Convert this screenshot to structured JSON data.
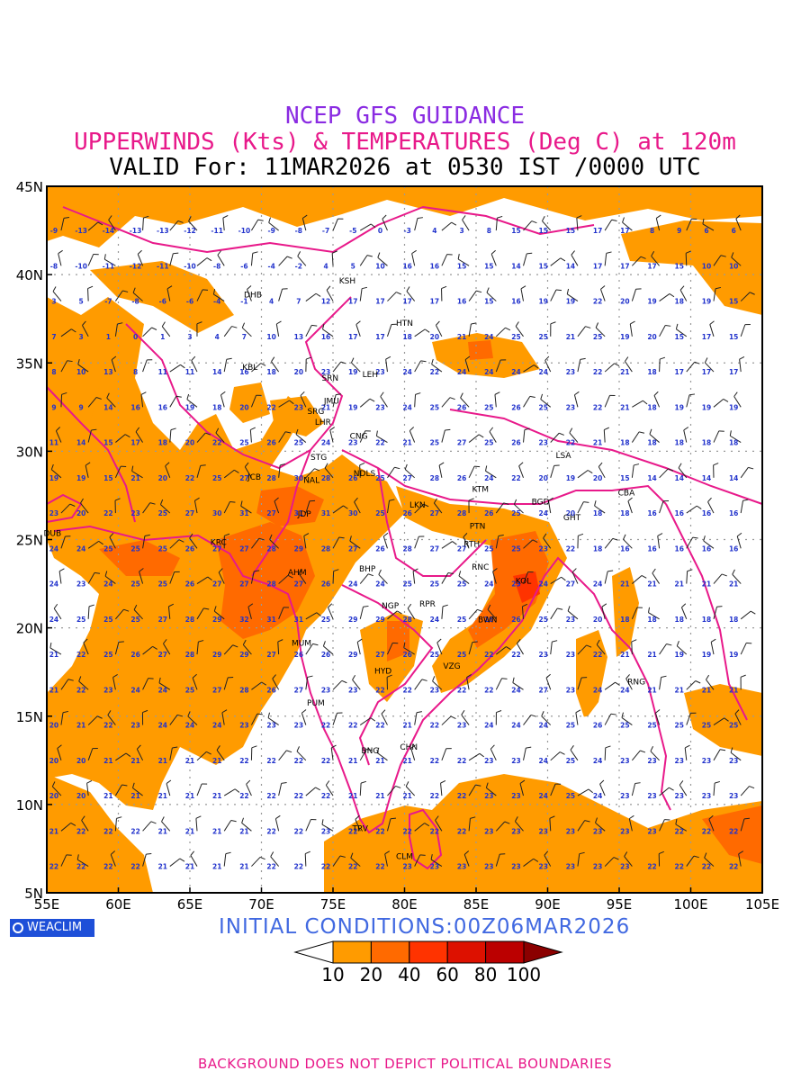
{
  "header": {
    "line1": "NCEP GFS GUIDANCE",
    "line2": "UPPERWINDS (Kts) & TEMPERATURES (Deg C) at 120m",
    "line3": "VALID For: 11MAR2026 at 0530 IST /0000 UTC"
  },
  "map": {
    "lat_labels": [
      "45N",
      "40N",
      "35N",
      "30N",
      "25N",
      "20N",
      "15N",
      "10N",
      "5N"
    ],
    "lon_labels": [
      "55E",
      "60E",
      "65E",
      "70E",
      "75E",
      "80E",
      "85E",
      "90E",
      "95E",
      "100E",
      "105E"
    ],
    "lat_range": [
      5,
      45
    ],
    "lon_range": [
      55,
      105
    ],
    "grid": "dotted every 5 degrees",
    "stations": [
      {
        "code": "KSH",
        "lon": 76.0,
        "lat": 39.5
      },
      {
        "code": "DHB",
        "lon": 69.4,
        "lat": 38.7
      },
      {
        "code": "HTN",
        "lon": 80.0,
        "lat": 37.1
      },
      {
        "code": "KBL",
        "lon": 69.2,
        "lat": 34.6
      },
      {
        "code": "SRN",
        "lon": 74.8,
        "lat": 34.0
      },
      {
        "code": "LEH",
        "lon": 77.6,
        "lat": 34.2
      },
      {
        "code": "JMU",
        "lon": 74.9,
        "lat": 32.7
      },
      {
        "code": "SRG",
        "lon": 73.8,
        "lat": 32.1
      },
      {
        "code": "LHR",
        "lon": 74.3,
        "lat": 31.5
      },
      {
        "code": "CNG",
        "lon": 76.8,
        "lat": 30.7
      },
      {
        "code": "STG",
        "lon": 74.0,
        "lat": 29.5
      },
      {
        "code": "JCB",
        "lon": 69.5,
        "lat": 28.4
      },
      {
        "code": "NAL",
        "lon": 73.5,
        "lat": 28.2
      },
      {
        "code": "NDLS",
        "lon": 77.2,
        "lat": 28.6
      },
      {
        "code": "JDP",
        "lon": 73.0,
        "lat": 26.3
      },
      {
        "code": "LKN",
        "lon": 80.9,
        "lat": 26.8
      },
      {
        "code": "KTM",
        "lon": 85.3,
        "lat": 27.7
      },
      {
        "code": "BGD",
        "lon": 89.5,
        "lat": 27.0
      },
      {
        "code": "LSA",
        "lon": 91.1,
        "lat": 29.6
      },
      {
        "code": "CBA",
        "lon": 95.5,
        "lat": 27.5
      },
      {
        "code": "GHT",
        "lon": 91.7,
        "lat": 26.1
      },
      {
        "code": "DUB",
        "lon": 55.4,
        "lat": 25.2
      },
      {
        "code": "KRC",
        "lon": 67.0,
        "lat": 24.7
      },
      {
        "code": "PTN",
        "lon": 85.1,
        "lat": 25.6
      },
      {
        "code": "RTH",
        "lon": 84.7,
        "lat": 24.6
      },
      {
        "code": "AHM",
        "lon": 72.5,
        "lat": 23.0
      },
      {
        "code": "BHP",
        "lon": 77.4,
        "lat": 23.2
      },
      {
        "code": "RNC",
        "lon": 85.3,
        "lat": 23.3
      },
      {
        "code": "KOL",
        "lon": 88.3,
        "lat": 22.5
      },
      {
        "code": "NGP",
        "lon": 79.0,
        "lat": 21.1
      },
      {
        "code": "RPR",
        "lon": 81.6,
        "lat": 21.2
      },
      {
        "code": "BWN",
        "lon": 85.8,
        "lat": 20.3
      },
      {
        "code": "MUM",
        "lon": 72.8,
        "lat": 19.0
      },
      {
        "code": "HYD",
        "lon": 78.5,
        "lat": 17.4
      },
      {
        "code": "VZG",
        "lon": 83.3,
        "lat": 17.7
      },
      {
        "code": "RNG",
        "lon": 96.2,
        "lat": 16.8
      },
      {
        "code": "PUM",
        "lon": 73.8,
        "lat": 15.6
      },
      {
        "code": "CHN",
        "lon": 80.3,
        "lat": 13.1
      },
      {
        "code": "BNG",
        "lon": 77.6,
        "lat": 12.9
      },
      {
        "code": "TRV",
        "lon": 76.9,
        "lat": 8.5
      },
      {
        "code": "CLM",
        "lon": 80.0,
        "lat": 6.9
      }
    ],
    "temperature_rows": [
      {
        "lat": 42.5,
        "values": [
          "-9",
          "-13",
          "-14",
          "-13",
          "-13",
          "-12",
          "-11",
          "-10",
          "-9",
          "-8",
          "-7",
          "-5",
          "0",
          "-3",
          "4",
          "3",
          "8",
          "15",
          "15",
          "15",
          "17",
          "17",
          "8",
          "9",
          "6",
          "6"
        ]
      },
      {
        "lat": 40.5,
        "values": [
          "-8",
          "-10",
          "-11",
          "-12",
          "-11",
          "-10",
          "-8",
          "-6",
          "-4",
          "-2",
          "4",
          "5",
          "10",
          "16",
          "16",
          "15",
          "15",
          "14",
          "15",
          "14",
          "17",
          "17",
          "17",
          "15",
          "10",
          "10"
        ]
      },
      {
        "lat": 38.5,
        "values": [
          "3",
          "5",
          "-7",
          "-8",
          "-6",
          "-6",
          "-4",
          "-1",
          "4",
          "7",
          "12",
          "17",
          "17",
          "17",
          "17",
          "16",
          "15",
          "16",
          "19",
          "19",
          "22",
          "20",
          "19",
          "18",
          "19",
          "15"
        ]
      },
      {
        "lat": 36.5,
        "values": [
          "7",
          "3",
          "1",
          "0",
          "1",
          "3",
          "4",
          "7",
          "10",
          "13",
          "16",
          "17",
          "17",
          "18",
          "20",
          "21",
          "24",
          "25",
          "25",
          "21",
          "25",
          "19",
          "20",
          "15",
          "17",
          "15"
        ]
      },
      {
        "lat": 34.5,
        "values": [
          "8",
          "10",
          "13",
          "8",
          "11",
          "11",
          "14",
          "16",
          "18",
          "20",
          "23",
          "19",
          "23",
          "24",
          "22",
          "24",
          "24",
          "24",
          "24",
          "23",
          "22",
          "21",
          "18",
          "17",
          "17",
          "17"
        ]
      },
      {
        "lat": 32.5,
        "values": [
          "9",
          "9",
          "14",
          "16",
          "16",
          "19",
          "18",
          "20",
          "22",
          "23",
          "21",
          "19",
          "23",
          "24",
          "25",
          "26",
          "25",
          "26",
          "25",
          "23",
          "22",
          "21",
          "18",
          "19",
          "19",
          "19"
        ]
      },
      {
        "lat": 30.5,
        "values": [
          "11",
          "14",
          "15",
          "17",
          "18",
          "20",
          "22",
          "25",
          "26",
          "25",
          "24",
          "23",
          "22",
          "21",
          "25",
          "27",
          "25",
          "26",
          "23",
          "22",
          "21",
          "18",
          "18",
          "18",
          "18",
          "18"
        ]
      },
      {
        "lat": 28.5,
        "values": [
          "19",
          "19",
          "15",
          "21",
          "20",
          "22",
          "25",
          "27",
          "28",
          "30",
          "28",
          "26",
          "25",
          "27",
          "28",
          "26",
          "24",
          "22",
          "20",
          "19",
          "20",
          "15",
          "14",
          "14",
          "14",
          "14"
        ]
      },
      {
        "lat": 26.5,
        "values": [
          "23",
          "20",
          "22",
          "23",
          "25",
          "27",
          "30",
          "31",
          "27",
          "31",
          "31",
          "30",
          "25",
          "26",
          "27",
          "28",
          "26",
          "25",
          "24",
          "20",
          "18",
          "18",
          "16",
          "16",
          "16",
          "16"
        ]
      },
      {
        "lat": 24.5,
        "values": [
          "24",
          "24",
          "25",
          "25",
          "25",
          "26",
          "27",
          "27",
          "28",
          "29",
          "28",
          "27",
          "26",
          "28",
          "27",
          "27",
          "25",
          "25",
          "23",
          "22",
          "18",
          "16",
          "16",
          "16",
          "16",
          "16"
        ]
      },
      {
        "lat": 22.5,
        "values": [
          "24",
          "23",
          "24",
          "25",
          "25",
          "26",
          "27",
          "27",
          "28",
          "27",
          "26",
          "24",
          "24",
          "25",
          "25",
          "25",
          "24",
          "23",
          "24",
          "27",
          "24",
          "21",
          "21",
          "21",
          "21",
          "21"
        ]
      },
      {
        "lat": 20.5,
        "values": [
          "24",
          "25",
          "25",
          "25",
          "27",
          "28",
          "29",
          "32",
          "31",
          "31",
          "25",
          "29",
          "29",
          "28",
          "24",
          "25",
          "26",
          "26",
          "25",
          "23",
          "20",
          "18",
          "18",
          "18",
          "18",
          "18"
        ]
      },
      {
        "lat": 18.5,
        "values": [
          "21",
          "22",
          "25",
          "26",
          "27",
          "28",
          "29",
          "29",
          "27",
          "26",
          "26",
          "29",
          "27",
          "26",
          "25",
          "25",
          "22",
          "22",
          "23",
          "23",
          "22",
          "21",
          "21",
          "19",
          "19",
          "19"
        ]
      },
      {
        "lat": 16.5,
        "values": [
          "21",
          "22",
          "23",
          "24",
          "24",
          "25",
          "27",
          "28",
          "26",
          "27",
          "23",
          "23",
          "22",
          "22",
          "23",
          "22",
          "22",
          "24",
          "27",
          "23",
          "24",
          "24",
          "21",
          "21",
          "21",
          "21"
        ]
      },
      {
        "lat": 14.5,
        "values": [
          "20",
          "21",
          "22",
          "23",
          "24",
          "24",
          "24",
          "23",
          "23",
          "23",
          "22",
          "22",
          "22",
          "21",
          "22",
          "23",
          "24",
          "24",
          "24",
          "25",
          "26",
          "25",
          "25",
          "25",
          "25",
          "25"
        ]
      },
      {
        "lat": 12.5,
        "values": [
          "20",
          "20",
          "21",
          "21",
          "21",
          "21",
          "21",
          "22",
          "22",
          "22",
          "22",
          "21",
          "21",
          "21",
          "22",
          "22",
          "23",
          "23",
          "24",
          "25",
          "24",
          "23",
          "23",
          "23",
          "23",
          "23"
        ]
      },
      {
        "lat": 10.5,
        "values": [
          "20",
          "20",
          "21",
          "21",
          "21",
          "21",
          "21",
          "22",
          "22",
          "22",
          "22",
          "21",
          "21",
          "21",
          "22",
          "22",
          "23",
          "23",
          "24",
          "25",
          "24",
          "23",
          "23",
          "23",
          "23",
          "23"
        ]
      },
      {
        "lat": 8.5,
        "values": [
          "21",
          "22",
          "22",
          "22",
          "21",
          "21",
          "21",
          "21",
          "22",
          "22",
          "23",
          "22",
          "22",
          "22",
          "22",
          "22",
          "23",
          "23",
          "23",
          "23",
          "23",
          "23",
          "23",
          "22",
          "22",
          "22"
        ]
      },
      {
        "lat": 6.5,
        "values": [
          "22",
          "22",
          "22",
          "22",
          "21",
          "21",
          "21",
          "21",
          "22",
          "22",
          "22",
          "22",
          "22",
          "23",
          "23",
          "23",
          "23",
          "23",
          "23",
          "23",
          "23",
          "23",
          "22",
          "22",
          "22",
          "22"
        ]
      }
    ]
  },
  "colorbar": {
    "levels": [
      "10",
      "20",
      "40",
      "60",
      "80",
      "100"
    ],
    "colors": [
      "#ff9b00",
      "#ff6a00",
      "#ff3300",
      "#dd1100",
      "#bb0000",
      "#8b0000"
    ],
    "shading_color": "#ff9b00",
    "shading_color_dark": "#ff6a00"
  },
  "colors": {
    "title": "#8a2be2",
    "subtitle": "#e8198a",
    "coastline": "#e8198a",
    "temperature_text": "#2233cc",
    "initial_conditions": "#4169e1",
    "logo_bg": "#1e4fd8"
  },
  "footer": {
    "initial_conditions": "INITIAL CONDITIONS:00Z06MAR2026",
    "note": "BACKGROUND DOES NOT DEPICT POLITICAL BOUNDARIES",
    "logo_text": "WEACLIM"
  }
}
